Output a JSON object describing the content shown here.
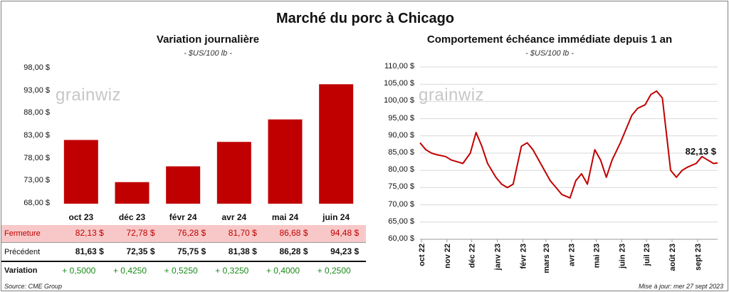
{
  "main_title": "Marché du porc à Chicago",
  "left_chart": {
    "title": "Variation  journalière",
    "subtitle": "- $US/100 lb -",
    "watermark": "grainwiz",
    "y_ticks": [
      "98,00 $",
      "93,00 $",
      "88,00 $",
      "83,00 $",
      "78,00 $",
      "73,00 $",
      "68,00 $"
    ]
  },
  "right_chart": {
    "title": "Comportement  échéance immédiate depuis 1 an",
    "subtitle": "- $US/100 lb -",
    "watermark": "grainwiz",
    "last_label": "82,13 $",
    "y_ticks": [
      "110,00 $",
      "105,00 $",
      "100,00 $",
      "95,00 $",
      "90,00 $",
      "85,00 $",
      "80,00 $",
      "75,00 $",
      "70,00 $",
      "65,00 $",
      "60,00 $"
    ],
    "x_ticks": [
      "oct 22",
      "nov 22",
      "déc 22",
      "janv 23",
      "févr 23",
      "mars 23",
      "avr 23",
      "mai 23",
      "juin 23",
      "juil 23",
      "août 23",
      "sept 23"
    ]
  },
  "table": {
    "row_labels": {
      "close": "Fermeture",
      "prev": "Précédent",
      "var": "Variation"
    },
    "close": [
      "82,13  $",
      "72,78  $",
      "76,28  $",
      "81,70  $",
      "86,68  $",
      "94,48  $"
    ],
    "prev": [
      "81,63  $",
      "72,35  $",
      "75,75  $",
      "81,38  $",
      "86,28  $",
      "94,23  $"
    ],
    "var": [
      "+ 0,5000",
      "+ 0,4250",
      "+ 0,5250",
      "+ 0,3250",
      "+ 0,4000",
      "+ 0,2500"
    ]
  },
  "footer": {
    "source": "Source: CME Group",
    "updated": "Mise à jour: mer 27 sept 2023"
  },
  "colors": {
    "bar": "#c00000",
    "line": "#c00000",
    "positive": "#1a8a1a",
    "close_bg": "#f8c8c8"
  },
  "chart_data": [
    {
      "type": "bar",
      "categories": [
        "oct 23",
        "déc 23",
        "févr 24",
        "avr 24",
        "mai 24",
        "juin 24"
      ],
      "values": [
        82.13,
        72.78,
        76.28,
        81.7,
        86.68,
        94.48
      ],
      "title": "Variation  journalière",
      "ylabel": "- $US/100 lb -",
      "ylim": [
        68,
        98
      ]
    },
    {
      "type": "line",
      "title": "Comportement  échéance immédiate depuis 1 an",
      "ylabel": "- $US/100 lb -",
      "ylim": [
        60,
        110
      ],
      "x_ticks": [
        "oct 22",
        "nov 22",
        "déc 22",
        "janv 23",
        "févr 23",
        "mars 23",
        "avr 23",
        "mai 23",
        "juin 23",
        "juil 23",
        "août 23",
        "sept 23"
      ],
      "x": [
        "2022-10-01",
        "2022-10-08",
        "2022-10-15",
        "2022-10-22",
        "2022-11-01",
        "2022-11-08",
        "2022-11-15",
        "2022-11-22",
        "2022-12-01",
        "2022-12-08",
        "2022-12-15",
        "2022-12-22",
        "2023-01-01",
        "2023-01-08",
        "2023-01-15",
        "2023-01-22",
        "2023-02-01",
        "2023-02-08",
        "2023-02-15",
        "2023-02-22",
        "2023-03-01",
        "2023-03-08",
        "2023-03-15",
        "2023-03-22",
        "2023-04-01",
        "2023-04-08",
        "2023-04-15",
        "2023-04-22",
        "2023-05-01",
        "2023-05-08",
        "2023-05-15",
        "2023-05-22",
        "2023-06-01",
        "2023-06-08",
        "2023-06-15",
        "2023-06-22",
        "2023-07-01",
        "2023-07-08",
        "2023-07-15",
        "2023-07-22",
        "2023-08-01",
        "2023-08-08",
        "2023-08-15",
        "2023-08-22",
        "2023-09-01",
        "2023-09-08",
        "2023-09-15",
        "2023-09-22",
        "2023-09-27"
      ],
      "y": [
        88,
        86,
        85,
        84.5,
        84,
        83,
        82.5,
        82,
        85,
        91,
        87,
        82,
        78,
        76,
        75,
        76,
        87,
        88,
        86,
        83,
        80,
        77,
        75,
        73,
        72,
        77,
        79,
        76,
        86,
        83,
        78,
        83,
        88,
        92,
        96,
        98,
        99,
        102,
        103,
        101,
        80,
        78,
        80,
        81,
        82,
        84,
        83,
        82,
        82.13
      ]
    }
  ]
}
